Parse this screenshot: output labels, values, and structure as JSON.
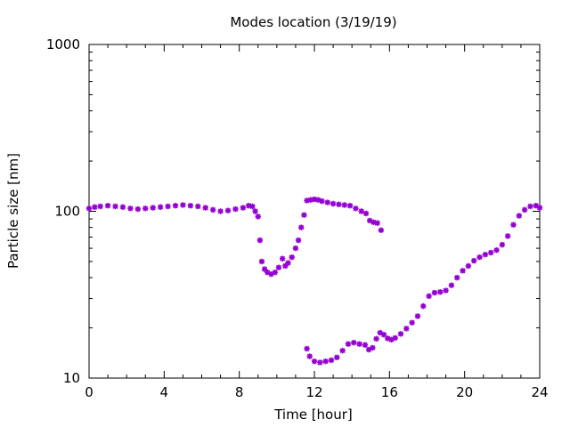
{
  "chart_data": {
    "type": "scatter",
    "title": "Modes location (3/19/19)",
    "xlabel": "Time [hour]",
    "ylabel": "Particle size [nm]",
    "xlim": [
      0,
      24
    ],
    "ylim": [
      10,
      1000
    ],
    "yscale": "log",
    "xticks": [
      0,
      4,
      8,
      12,
      16,
      20,
      24
    ],
    "yticks": [
      10,
      100,
      1000
    ],
    "xtick_labels": [
      "0",
      "4",
      "8",
      "12",
      "16",
      "20",
      "24"
    ],
    "ytick_labels": [
      "10",
      "100",
      "1000"
    ],
    "grid": false,
    "marker": "asterisk",
    "color": "#9400d3",
    "series": [
      {
        "points": [
          [
            0.0,
            104
          ],
          [
            0.3,
            106
          ],
          [
            0.6,
            107
          ],
          [
            1.0,
            108
          ],
          [
            1.4,
            107
          ],
          [
            1.8,
            106
          ],
          [
            2.2,
            104
          ],
          [
            2.6,
            103
          ],
          [
            3.0,
            104
          ],
          [
            3.4,
            105
          ],
          [
            3.8,
            106
          ],
          [
            4.2,
            107
          ],
          [
            4.6,
            108
          ],
          [
            5.0,
            109
          ],
          [
            5.4,
            108
          ],
          [
            5.8,
            107
          ],
          [
            6.2,
            105
          ],
          [
            6.6,
            102
          ],
          [
            7.0,
            100
          ],
          [
            7.4,
            101
          ],
          [
            7.8,
            103
          ],
          [
            8.2,
            105
          ],
          [
            8.5,
            108
          ],
          [
            8.7,
            107
          ],
          [
            8.85,
            100
          ],
          [
            9.0,
            93
          ],
          [
            9.1,
            67
          ],
          [
            9.2,
            50
          ],
          [
            9.35,
            45
          ],
          [
            9.5,
            43
          ],
          [
            9.7,
            42
          ],
          [
            9.9,
            43
          ],
          [
            10.1,
            46
          ],
          [
            10.3,
            52
          ],
          [
            10.45,
            47
          ],
          [
            10.6,
            49
          ],
          [
            10.8,
            53
          ],
          [
            11.0,
            60
          ],
          [
            11.15,
            67
          ],
          [
            11.3,
            80
          ],
          [
            11.45,
            95
          ],
          [
            11.6,
            116
          ],
          [
            11.8,
            117
          ],
          [
            12.0,
            118
          ],
          [
            12.2,
            117
          ],
          [
            12.4,
            115
          ],
          [
            12.7,
            113
          ],
          [
            13.0,
            111
          ],
          [
            13.3,
            110
          ],
          [
            13.6,
            109
          ],
          [
            13.9,
            108
          ],
          [
            14.2,
            104
          ],
          [
            14.5,
            100
          ],
          [
            14.75,
            97
          ],
          [
            14.95,
            88
          ],
          [
            15.15,
            86
          ],
          [
            15.35,
            85
          ],
          [
            15.55,
            77
          ]
        ]
      },
      {
        "points": [
          [
            11.6,
            15
          ],
          [
            11.75,
            13.5
          ],
          [
            12.0,
            12.6
          ],
          [
            12.3,
            12.4
          ],
          [
            12.6,
            12.6
          ],
          [
            12.9,
            12.8
          ],
          [
            13.2,
            13.3
          ],
          [
            13.5,
            14.6
          ],
          [
            13.8,
            16.0
          ],
          [
            14.1,
            16.3
          ],
          [
            14.4,
            16.0
          ],
          [
            14.7,
            15.8
          ],
          [
            14.9,
            14.8
          ],
          [
            15.1,
            15.2
          ],
          [
            15.3,
            17.2
          ],
          [
            15.5,
            18.7
          ],
          [
            15.7,
            18.2
          ],
          [
            15.9,
            17.3
          ],
          [
            16.1,
            17.0
          ],
          [
            16.3,
            17.4
          ],
          [
            16.6,
            18.4
          ],
          [
            16.9,
            19.8
          ],
          [
            17.2,
            21.5
          ],
          [
            17.5,
            23.5
          ],
          [
            17.8,
            27.0
          ],
          [
            18.1,
            31.0
          ],
          [
            18.4,
            32.5
          ],
          [
            18.7,
            32.8
          ],
          [
            19.0,
            33.5
          ],
          [
            19.3,
            36.0
          ],
          [
            19.6,
            40.0
          ],
          [
            19.9,
            44.0
          ],
          [
            20.2,
            47.0
          ],
          [
            20.5,
            50.5
          ],
          [
            20.8,
            53.0
          ],
          [
            21.1,
            55.0
          ],
          [
            21.4,
            56.5
          ],
          [
            21.7,
            58.5
          ],
          [
            22.0,
            63.0
          ],
          [
            22.3,
            71.0
          ],
          [
            22.6,
            83.0
          ],
          [
            22.9,
            94.0
          ],
          [
            23.2,
            102.0
          ],
          [
            23.5,
            107.0
          ],
          [
            23.8,
            108.0
          ],
          [
            24.0,
            105.0
          ]
        ]
      }
    ]
  }
}
